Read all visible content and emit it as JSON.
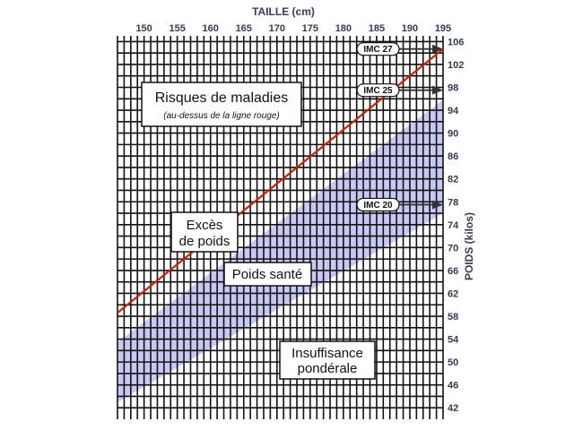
{
  "chart_data": {
    "type": "line",
    "title": "",
    "xlabel": "TAILLE (cm)",
    "ylabel": "POIDS (kilos)",
    "xlim": [
      146,
      195
    ],
    "ylim": [
      40,
      107
    ],
    "x_ticks": [
      150,
      155,
      160,
      165,
      170,
      175,
      180,
      185,
      190,
      195
    ],
    "y_ticks": [
      42,
      46,
      50,
      54,
      58,
      62,
      66,
      70,
      74,
      78,
      82,
      86,
      90,
      94,
      98,
      102,
      106
    ],
    "grid": true,
    "series": [
      {
        "name": "IMC 27",
        "role": "line",
        "color": "#cc2200",
        "x": [
          146,
          195
        ],
        "y": [
          58.6,
          104.7
        ]
      }
    ],
    "band": {
      "color": "#c8c8f4",
      "lower": {
        "x": [
          146,
          195
        ],
        "y": [
          43.0,
          76.0
        ]
      },
      "upper": {
        "x": [
          146,
          195
        ],
        "y": [
          53.5,
          95.8
        ]
      }
    },
    "markers": [
      {
        "label": "IMC 27",
        "y": 104.7
      },
      {
        "label": "IMC 25",
        "y": 97.5
      },
      {
        "label": "IMC 20",
        "y": 77.5
      }
    ],
    "annotations": {
      "risk_title": "Risques de maladies",
      "risk_subtitle": "(au-dessus de la ligne rouge)",
      "excess_line1": "Excès",
      "excess_line2": "de poids",
      "healthy": "Poids santé",
      "under_line1": "Insuffisance",
      "under_line2": "pondérale"
    }
  }
}
